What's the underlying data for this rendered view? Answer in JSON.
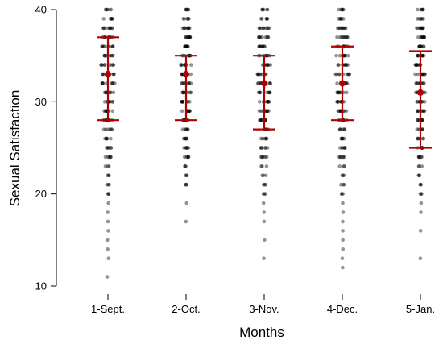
{
  "chart_data": {
    "type": "scatter",
    "title": "",
    "xlabel": "Months",
    "ylabel": "Sexual Satisfaction",
    "ylim": [
      10,
      40
    ],
    "yticks": [
      10,
      20,
      30,
      40
    ],
    "categories": [
      "1-Sept.",
      "2-Oct.",
      "3-Nov.",
      "4-Dec.",
      "5-Jan."
    ],
    "summary": [
      {
        "category": "1-Sept.",
        "center": 33,
        "lower": 28,
        "upper": 37
      },
      {
        "category": "2-Oct.",
        "center": 33,
        "lower": 28,
        "upper": 35
      },
      {
        "category": "3-Nov.",
        "center": 32,
        "lower": 27,
        "upper": 35
      },
      {
        "category": "4-Dec.",
        "center": 32,
        "lower": 28,
        "upper": 36
      },
      {
        "category": "5-Jan.",
        "center": 31,
        "lower": 25,
        "upper": 35.5
      }
    ],
    "observations": [
      {
        "category": "1-Sept.",
        "min": 11,
        "max": 40,
        "values": [
          11,
          13,
          14,
          15,
          16,
          17,
          18,
          19,
          20,
          21,
          22,
          23,
          24,
          25,
          26,
          27,
          28,
          29,
          30,
          31,
          32,
          33,
          34,
          35,
          36,
          37,
          38,
          39,
          40
        ]
      },
      {
        "category": "2-Oct.",
        "min": 17,
        "max": 40,
        "values": [
          17,
          19,
          21,
          22,
          23,
          24,
          25,
          26,
          27,
          28,
          29,
          30,
          31,
          32,
          33,
          34,
          35,
          36,
          37,
          38,
          39,
          40
        ]
      },
      {
        "category": "3-Nov.",
        "min": 13,
        "max": 40,
        "values": [
          13,
          15,
          17,
          18,
          19,
          20,
          21,
          22,
          23,
          24,
          25,
          26,
          27,
          28,
          29,
          30,
          31,
          32,
          33,
          34,
          35,
          36,
          37,
          38,
          39,
          40
        ]
      },
      {
        "category": "4-Dec.",
        "min": 12,
        "max": 40,
        "values": [
          12,
          13,
          14,
          15,
          16,
          17,
          18,
          19,
          20,
          21,
          22,
          23,
          24,
          25,
          26,
          27,
          28,
          29,
          30,
          31,
          32,
          33,
          34,
          35,
          36,
          37,
          38,
          39,
          40
        ]
      },
      {
        "category": "5-Jan.",
        "min": 13,
        "max": 40,
        "values": [
          13,
          16,
          18,
          19,
          20,
          21,
          22,
          23,
          24,
          25,
          26,
          27,
          28,
          29,
          30,
          31,
          32,
          33,
          34,
          35,
          36,
          37,
          38,
          39,
          40
        ]
      }
    ],
    "colors": {
      "points": "#000000",
      "summary": "#b00000"
    },
    "grid": false,
    "legend": "none"
  }
}
